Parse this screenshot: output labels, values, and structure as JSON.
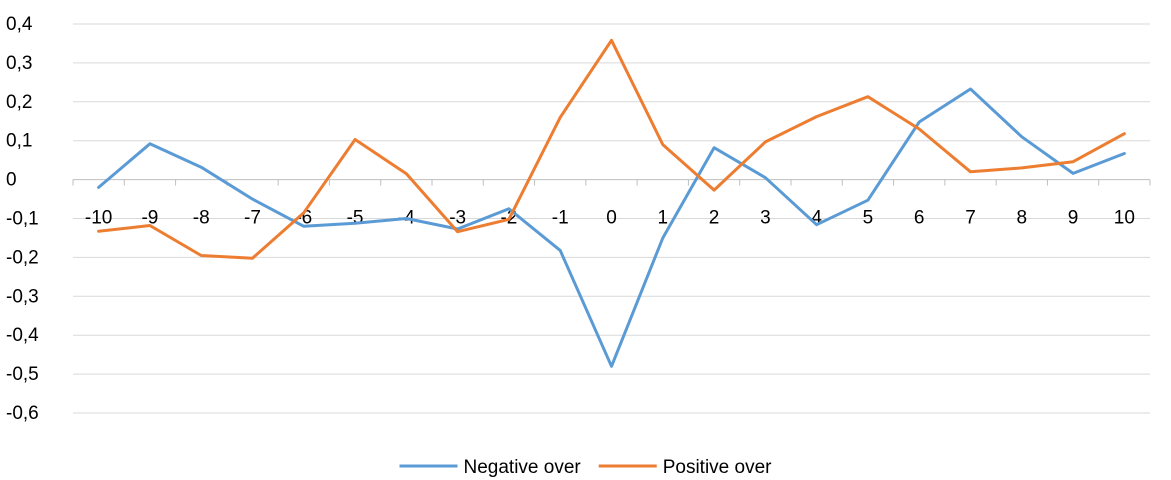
{
  "chart_data": {
    "type": "line",
    "title": "",
    "xlabel": "",
    "ylabel": "",
    "categories": [
      "-10",
      "-9",
      "-8",
      "-7",
      "-6",
      "-5",
      "-4",
      "-3",
      "-2",
      "-1",
      "0",
      "1",
      "2",
      "3",
      "4",
      "5",
      "6",
      "7",
      "8",
      "9",
      "10"
    ],
    "ylim": [
      -0.6,
      0.4
    ],
    "yticks": [
      "0,4",
      "0,3",
      "0,2",
      "0,1",
      "0",
      "-0,1",
      "-0,2",
      "-0,3",
      "-0,4",
      "-0,5",
      "-0,6"
    ],
    "ytick_values": [
      0.4,
      0.3,
      0.2,
      0.1,
      0,
      -0.1,
      -0.2,
      -0.3,
      -0.4,
      -0.5,
      -0.6
    ],
    "grid": true,
    "legend_position": "bottom",
    "series": [
      {
        "name": "Negative over",
        "color": "#5B9BD5",
        "values": [
          -0.02,
          0.092,
          0.032,
          -0.05,
          -0.12,
          -0.112,
          -0.1,
          -0.127,
          -0.075,
          -0.182,
          -0.48,
          -0.15,
          0.082,
          0.005,
          -0.116,
          -0.053,
          0.148,
          0.233,
          0.11,
          0.016,
          0.067
        ]
      },
      {
        "name": "Positive over",
        "color": "#ED7D31",
        "values": [
          -0.133,
          -0.118,
          -0.195,
          -0.202,
          -0.085,
          0.103,
          0.015,
          -0.134,
          -0.102,
          0.16,
          0.358,
          0.09,
          -0.027,
          0.097,
          0.162,
          0.213,
          0.13,
          0.02,
          0.03,
          0.046,
          0.118
        ]
      }
    ]
  }
}
